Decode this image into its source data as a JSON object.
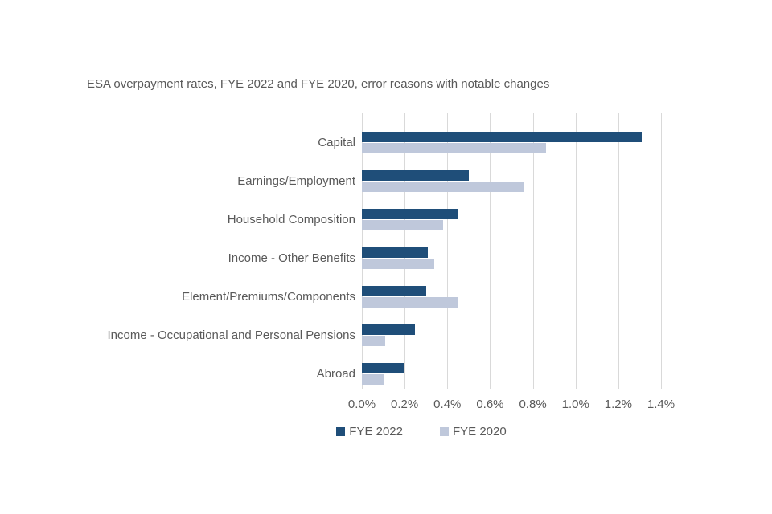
{
  "chart_data": {
    "type": "bar",
    "orientation": "horizontal",
    "title": "ESA overpayment rates, FYE 2022 and FYE 2020, error reasons with notable changes",
    "categories": [
      "Capital",
      "Earnings/Employment",
      "Household Composition",
      "Income - Other Benefits",
      "Element/Premiums/Components",
      "Income - Occupational and Personal Pensions",
      "Abroad"
    ],
    "series": [
      {
        "name": "FYE 2022",
        "color": "#1F4E79",
        "values": [
          1.31,
          0.5,
          0.45,
          0.31,
          0.3,
          0.25,
          0.2
        ]
      },
      {
        "name": "FYE 2020",
        "color": "#BFC8DB",
        "values": [
          0.86,
          0.76,
          0.38,
          0.34,
          0.45,
          0.11,
          0.1
        ]
      }
    ],
    "value_unit": "%",
    "xlim": [
      0,
      1.4
    ],
    "x_tick_labels": [
      "0.0%",
      "0.2%",
      "0.4%",
      "0.6%",
      "0.8%",
      "1.0%",
      "1.2%",
      "1.4%"
    ],
    "grid": "vertical",
    "legend_position": "bottom",
    "colors": {
      "text": "#595959",
      "gridline": "#D9D9D9",
      "background": "#FFFFFF"
    }
  }
}
